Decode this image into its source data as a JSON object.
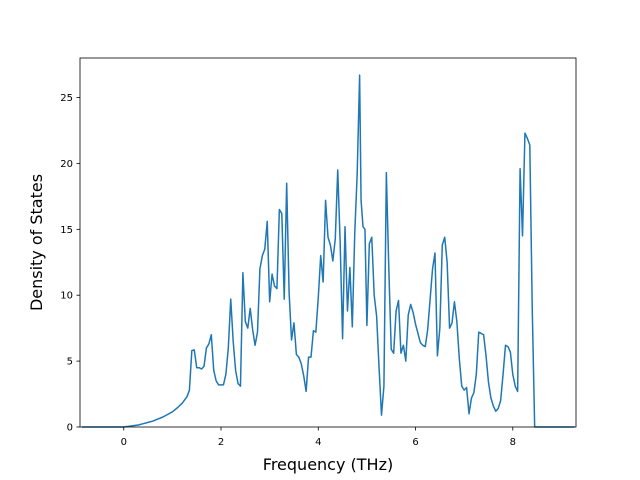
{
  "chart_data": {
    "type": "line",
    "title": "",
    "xlabel": "Frequency (THz)",
    "ylabel": "Density of States",
    "xlim": [
      -0.9,
      9.3
    ],
    "ylim": [
      0,
      28
    ],
    "xticks": [
      0,
      2,
      4,
      6,
      8
    ],
    "yticks": [
      0,
      5,
      10,
      15,
      20,
      25
    ],
    "xtick_labels": [
      "0",
      "2",
      "4",
      "6",
      "8"
    ],
    "ytick_labels": [
      "0",
      "5",
      "10",
      "15",
      "20",
      "25"
    ],
    "grid": false,
    "legend": "none",
    "series": [
      {
        "color": "#1f77b4",
        "x": [
          -0.86,
          0.0,
          0.1,
          0.2,
          0.3,
          0.4,
          0.5,
          0.6,
          0.7,
          0.8,
          0.9,
          1.0,
          1.1,
          1.2,
          1.3,
          1.35,
          1.4,
          1.45,
          1.5,
          1.55,
          1.6,
          1.65,
          1.7,
          1.75,
          1.8,
          1.85,
          1.9,
          1.95,
          2.0,
          2.05,
          2.1,
          2.15,
          2.2,
          2.25,
          2.3,
          2.35,
          2.4,
          2.45,
          2.5,
          2.55,
          2.6,
          2.65,
          2.7,
          2.75,
          2.8,
          2.85,
          2.9,
          2.95,
          3.0,
          3.05,
          3.1,
          3.15,
          3.2,
          3.25,
          3.3,
          3.35,
          3.4,
          3.45,
          3.5,
          3.55,
          3.6,
          3.65,
          3.7,
          3.75,
          3.8,
          3.85,
          3.9,
          3.95,
          4.0,
          4.05,
          4.1,
          4.15,
          4.2,
          4.25,
          4.3,
          4.35,
          4.4,
          4.45,
          4.5,
          4.55,
          4.6,
          4.65,
          4.7,
          4.75,
          4.8,
          4.85,
          4.88,
          4.92,
          4.96,
          5.0,
          5.05,
          5.1,
          5.15,
          5.2,
          5.25,
          5.3,
          5.35,
          5.4,
          5.45,
          5.5,
          5.55,
          5.6,
          5.65,
          5.7,
          5.75,
          5.8,
          5.85,
          5.9,
          5.95,
          6.0,
          6.05,
          6.1,
          6.15,
          6.2,
          6.25,
          6.3,
          6.35,
          6.4,
          6.45,
          6.5,
          6.55,
          6.6,
          6.65,
          6.7,
          6.75,
          6.8,
          6.85,
          6.9,
          6.95,
          7.0,
          7.05,
          7.1,
          7.15,
          7.2,
          7.25,
          7.3,
          7.35,
          7.4,
          7.45,
          7.5,
          7.55,
          7.6,
          7.65,
          7.7,
          7.75,
          7.8,
          7.85,
          7.9,
          7.95,
          8.0,
          8.05,
          8.1,
          8.15,
          8.2,
          8.25,
          8.3,
          8.35,
          8.4,
          8.45,
          9.27
        ],
        "y": [
          0.0,
          0.0,
          0.05,
          0.1,
          0.15,
          0.25,
          0.35,
          0.45,
          0.6,
          0.75,
          0.95,
          1.15,
          1.45,
          1.8,
          2.3,
          2.8,
          5.8,
          5.85,
          4.5,
          4.5,
          4.4,
          4.6,
          6.0,
          6.3,
          7.0,
          4.3,
          3.5,
          3.2,
          3.2,
          3.2,
          4.0,
          6.0,
          9.7,
          6.5,
          4.3,
          3.3,
          3.1,
          11.7,
          8.0,
          7.5,
          9.0,
          7.4,
          6.2,
          7.2,
          12.0,
          13.0,
          13.5,
          15.6,
          9.5,
          11.6,
          10.7,
          10.5,
          16.5,
          16.2,
          9.7,
          18.5,
          10.2,
          6.6,
          7.9,
          5.5,
          5.3,
          4.8,
          3.9,
          2.7,
          5.3,
          5.3,
          7.3,
          7.2,
          9.8,
          13.0,
          11.0,
          17.2,
          14.4,
          13.8,
          12.6,
          14.3,
          19.5,
          14.0,
          6.7,
          15.2,
          8.8,
          12.1,
          7.6,
          14.7,
          19.2,
          26.7,
          17.2,
          15.2,
          15.0,
          7.7,
          13.9,
          14.4,
          10.0,
          8.4,
          4.5,
          0.9,
          3.1,
          19.3,
          12.1,
          5.9,
          5.6,
          8.8,
          9.6,
          5.6,
          6.2,
          5.0,
          8.5,
          9.3,
          8.7,
          7.8,
          7.1,
          6.4,
          6.2,
          6.1,
          7.4,
          9.7,
          12.0,
          13.2,
          5.4,
          7.5,
          13.8,
          14.4,
          12.5,
          7.5,
          7.9,
          9.5,
          8.0,
          5.2,
          3.1,
          2.8,
          3.0,
          1.0,
          2.2,
          2.6,
          4.0,
          7.2,
          7.1,
          7.0,
          5.4,
          3.4,
          2.2,
          1.6,
          1.2,
          1.4,
          2.0,
          4.0,
          6.2,
          6.1,
          5.7,
          4.0,
          3.1,
          2.7,
          19.6,
          14.5,
          22.3,
          21.9,
          21.4,
          9.0,
          0.0,
          0.0
        ]
      }
    ]
  }
}
